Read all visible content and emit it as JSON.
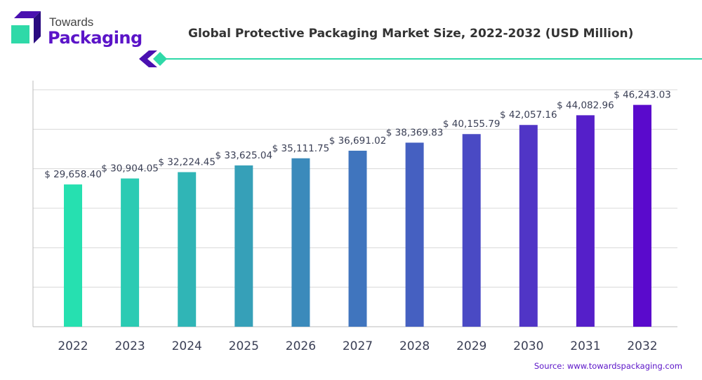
{
  "logo": {
    "line1": "Towards",
    "line2": "Packaging"
  },
  "colors": {
    "start": "#26e0b0",
    "end": "#5a0acc",
    "brand": "#5b14c8",
    "accent": "#2fd9a8"
  },
  "source": "Source: www.towardspackaging.com",
  "chart_data": {
    "type": "bar",
    "title": "Global Protective Packaging Market Size, 2022-2032 (USD Million)",
    "xlabel": "",
    "ylabel": "",
    "categories": [
      "2022",
      "2023",
      "2024",
      "2025",
      "2026",
      "2027",
      "2028",
      "2029",
      "2030",
      "2031",
      "2032"
    ],
    "values": [
      29658.4,
      30904.05,
      32224.45,
      33625.04,
      35111.75,
      36691.02,
      38369.83,
      40155.79,
      42057.16,
      44082.96,
      46243.03
    ],
    "labels": [
      "$ 29,658.40",
      "$ 30,904.05",
      "$ 32,224.45",
      "$ 33,625.04",
      "$ 35,111.75",
      "$ 36,691.02",
      "$ 38,369.83",
      "$ 40,155.79",
      "$ 42,057.16",
      "$ 44,082.96",
      "$ 46,243.03"
    ],
    "ylim": [
      0,
      49400
    ],
    "grid": true,
    "y_tick_labels": false
  }
}
